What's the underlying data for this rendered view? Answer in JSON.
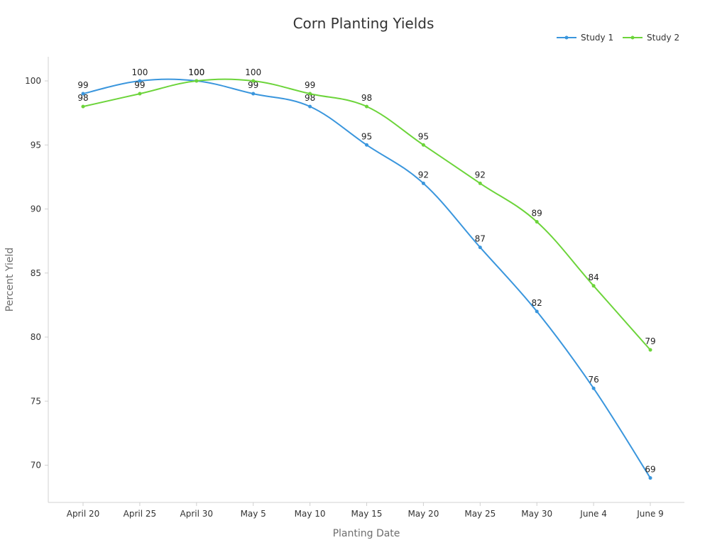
{
  "chart_data": {
    "type": "line",
    "title": "Corn Planting Yields",
    "xlabel": "Planting Date",
    "ylabel": "Percent Yield",
    "categories": [
      "April 20",
      "April 25",
      "April 30",
      "May 5",
      "May 10",
      "May 15",
      "May 20",
      "May 25",
      "May 30",
      "June 4",
      "June 9"
    ],
    "yticks": [
      70,
      75,
      80,
      85,
      90,
      95,
      100
    ],
    "ylim": [
      68,
      102
    ],
    "legend_position": "top-right",
    "grid": false,
    "series": [
      {
        "name": "Study 1",
        "color": "#3a96dd",
        "values": [
          99,
          100,
          100,
          99,
          98,
          95,
          92,
          87,
          82,
          76,
          69
        ]
      },
      {
        "name": "Study 2",
        "color": "#6cd43a",
        "values": [
          98,
          99,
          100,
          100,
          99,
          98,
          95,
          92,
          89,
          84,
          79
        ]
      }
    ]
  }
}
